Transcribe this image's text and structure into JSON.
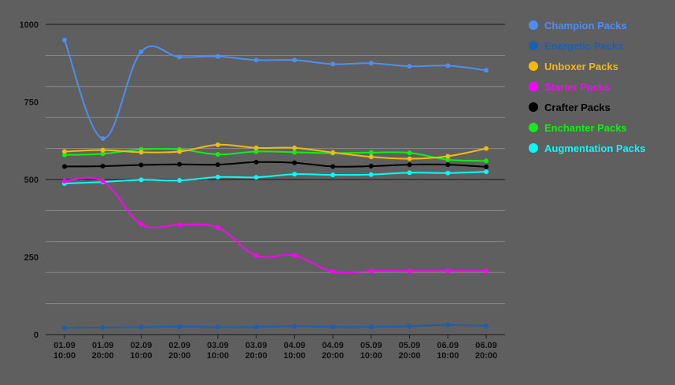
{
  "chart_data": {
    "type": "line",
    "categories": [
      [
        "01.09",
        "10:00"
      ],
      [
        "01.09",
        "20:00"
      ],
      [
        "02.09",
        "10:00"
      ],
      [
        "02.09",
        "20:00"
      ],
      [
        "03.09",
        "10:00"
      ],
      [
        "03.09",
        "20:00"
      ],
      [
        "04.09",
        "10:00"
      ],
      [
        "04.09",
        "20:00"
      ],
      [
        "05.09",
        "10:00"
      ],
      [
        "05.09",
        "20:00"
      ],
      [
        "06.09",
        "10:00"
      ],
      [
        "06.09",
        "20:00"
      ]
    ],
    "yticks": [
      0,
      250,
      500,
      750,
      1000
    ],
    "ylim": [
      0,
      1000
    ],
    "grid": true,
    "legend_position": "right",
    "background": "#5f5f5f",
    "series": [
      {
        "name": "Champion Packs",
        "color": "#4d8ef0",
        "values": [
          950,
          632,
          912,
          895,
          897,
          885,
          885,
          872,
          875,
          865,
          867,
          852
        ]
      },
      {
        "name": "Energetic Packs",
        "color": "#1d5faf",
        "values": [
          22,
          23,
          24,
          26,
          24,
          25,
          27,
          25,
          25,
          27,
          31,
          28
        ]
      },
      {
        "name": "Unboxer Packs",
        "color": "#f2b90f",
        "values": [
          590,
          595,
          588,
          590,
          612,
          602,
          602,
          587,
          573,
          567,
          575,
          600
        ]
      },
      {
        "name": "Starter Packs",
        "color": "#ff00ff",
        "values": [
          495,
          495,
          356,
          354,
          345,
          255,
          255,
          203,
          205,
          205,
          205,
          205
        ]
      },
      {
        "name": "Crafter Packs",
        "color": "#000000",
        "values": [
          542,
          543,
          547,
          549,
          548,
          556,
          554,
          542,
          543,
          548,
          548,
          541
        ]
      },
      {
        "name": "Enchanter Packs",
        "color": "#10f010",
        "values": [
          579,
          583,
          597,
          597,
          581,
          590,
          588,
          585,
          587,
          586,
          564,
          560
        ]
      },
      {
        "name": "Augmentation Packs",
        "color": "#00ffff",
        "values": [
          487,
          492,
          499,
          497,
          508,
          507,
          517,
          515,
          516,
          522,
          521,
          525
        ]
      }
    ]
  }
}
